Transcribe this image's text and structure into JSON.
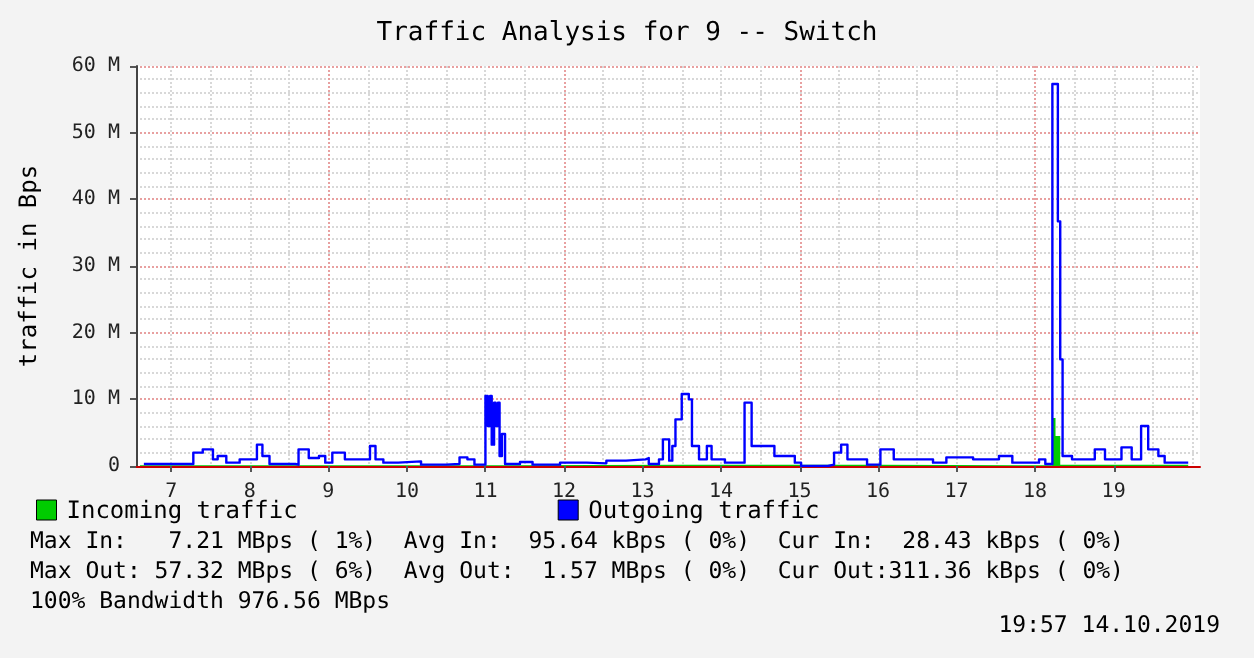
{
  "chart_data": {
    "type": "step",
    "title": "Traffic Analysis for 9 -- Switch",
    "ylabel": "traffic in Bps",
    "xlim": [
      6.55,
      20.1
    ],
    "xticks": [
      7,
      8,
      9,
      10,
      11,
      12,
      13,
      14,
      15,
      16,
      17,
      18,
      19
    ],
    "ylim": [
      0,
      60
    ],
    "yticks": [
      0,
      {
        "value": 10,
        "label": "10 M"
      },
      {
        "value": 20,
        "label": "20 M"
      },
      {
        "value": 30,
        "label": "30 M"
      },
      {
        "value": 40,
        "label": "40 M"
      },
      {
        "value": 50,
        "label": "50 M"
      },
      {
        "value": 60,
        "label": "60 M"
      }
    ],
    "grid": true,
    "legend": "bottom left",
    "series": [
      {
        "name": "Incoming traffic",
        "type": "area",
        "color": "#00cc00",
        "x": [
          6.6,
          9,
          11,
          13.5,
          16,
          18.18,
          18.22,
          18.26,
          18.32,
          19.95
        ],
        "values": [
          0.1,
          0.1,
          0.2,
          0.2,
          0.1,
          0.1,
          7.2,
          4.5,
          0.2,
          0.1
        ]
      },
      {
        "name": "Outgoing traffic",
        "color": "#0000ff",
        "x": [
          6.65,
          7.28,
          7.4,
          7.53,
          7.59,
          7.7,
          7.87,
          8.09,
          8.16,
          8.25,
          8.58,
          8.62,
          8.75,
          8.88,
          8.96,
          9.05,
          9.17,
          9.21,
          9.47,
          9.53,
          9.6,
          9.7,
          9.89,
          10.18,
          10.5,
          10.67,
          10.77,
          10.86,
          11.0,
          11.03,
          11.06,
          11.08,
          11.11,
          11.13,
          11.16,
          11.18,
          11.21,
          11.25,
          11.44,
          11.6,
          11.95,
          12.29,
          12.54,
          12.79,
          13.04,
          13.08,
          13.21,
          13.26,
          13.34,
          13.38,
          13.42,
          13.5,
          13.59,
          13.63,
          13.72,
          13.82,
          13.88,
          14.05,
          14.3,
          14.39,
          14.52,
          14.68,
          14.94,
          15.02,
          15.36,
          15.44,
          15.53,
          15.61,
          15.86,
          16.03,
          16.2,
          16.45,
          16.7,
          16.87,
          17.21,
          17.54,
          17.71,
          18.05,
          18.13,
          18.22,
          18.29,
          18.32,
          18.35,
          18.47,
          18.76,
          18.89,
          19.1,
          19.23,
          19.35,
          19.44,
          19.57,
          19.65,
          19.95
        ],
        "values": [
          0.3,
          2,
          2.5,
          1,
          1.5,
          0.5,
          1,
          3.2,
          1.5,
          0.3,
          0.2,
          2.5,
          1.2,
          1.5,
          0.5,
          2,
          2,
          1,
          1,
          3,
          1,
          0.5,
          0.7,
          0.2,
          0.3,
          1.3,
          1,
          0.2,
          10.5,
          6,
          10.5,
          3.2,
          9.5,
          6,
          9.5,
          1.5,
          4.8,
          0.3,
          0.6,
          0.2,
          0.5,
          0.4,
          0.8,
          1,
          1.2,
          0.3,
          1,
          4,
          0.8,
          3,
          7,
          10.8,
          10,
          3,
          1,
          3,
          1,
          0.5,
          9.5,
          3,
          3,
          1.5,
          0.5,
          0,
          0.2,
          2,
          3.2,
          1,
          0.2,
          2.5,
          1,
          1,
          0.5,
          1.3,
          1,
          1.5,
          0.5,
          1,
          0.3,
          57.3,
          36.7,
          16,
          1.5,
          1,
          2.5,
          1,
          2.8,
          1,
          6,
          2.5,
          1.5,
          0.5,
          0.3
        ]
      }
    ],
    "annotations": [
      "Max In:   7.21 MBps ( 1%)  Avg In:  95.64 kBps ( 0%)  Cur In:  28.43 kBps ( 0%)",
      "Max Out: 57.32 MBps ( 6%)  Avg Out:  1.57 MBps ( 0%)  Cur Out:311.36 kBps ( 0%)",
      "100% Bandwidth 976.56 MBps",
      "19:57 14.10.2019"
    ]
  }
}
